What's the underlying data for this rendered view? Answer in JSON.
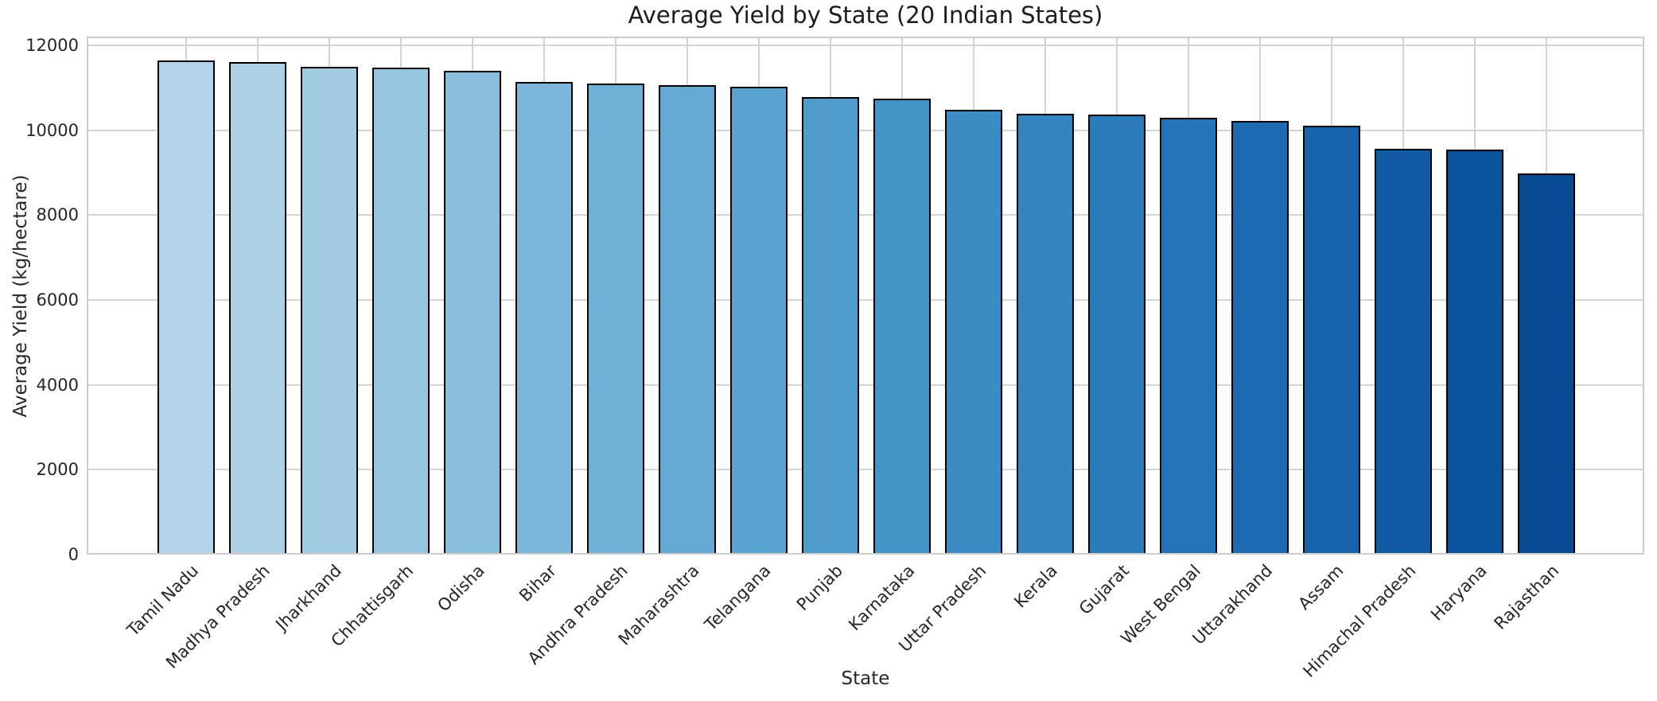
{
  "chart_data": {
    "type": "bar",
    "title": "Average Yield by State (20 Indian States)",
    "xlabel": "State",
    "ylabel": "Average Yield (kg/hectare)",
    "categories": [
      "Tamil Nadu",
      "Madhya Pradesh",
      "Jharkhand",
      "Chhattisgarh",
      "Odisha",
      "Bihar",
      "Andhra Pradesh",
      "Maharashtra",
      "Telangana",
      "Punjab",
      "Karnataka",
      "Uttar Pradesh",
      "Kerala",
      "Gujarat",
      "West Bengal",
      "Uttarakhand",
      "Assam",
      "Himachal Pradesh",
      "Haryana",
      "Rajasthan"
    ],
    "values": [
      11650,
      11610,
      11500,
      11470,
      11400,
      11130,
      11100,
      11070,
      11020,
      10790,
      10750,
      10480,
      10390,
      10370,
      10290,
      10220,
      10110,
      9560,
      9540,
      8980
    ],
    "bar_colors": [
      "#b6d4e9",
      "#acd0e6",
      "#a2cce2",
      "#96c6df",
      "#89bedc",
      "#7cb7da",
      "#6fb0d7",
      "#64a9d3",
      "#5aa2cf",
      "#4f9bcb",
      "#4594c7",
      "#3c8cc3",
      "#3484bf",
      "#2b7bba",
      "#2373b6",
      "#1c6bb0",
      "#1663aa",
      "#105ba4",
      "#09539d",
      "#084a92"
    ],
    "bar_edge_color": "#000000",
    "yticks": [
      0,
      2000,
      4000,
      6000,
      8000,
      10000,
      12000
    ],
    "ylim": [
      0,
      12200
    ],
    "x_tick_rotation": 45,
    "grid": true,
    "grid_color": "#d4d4d4",
    "axes_edge_color": "#cccccc",
    "text_color": "#262626",
    "background_color": "#ffffff"
  }
}
